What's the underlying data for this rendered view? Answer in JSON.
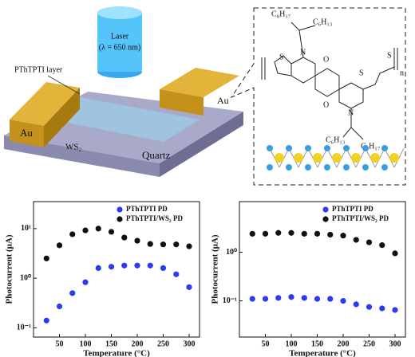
{
  "schematic": {
    "laser": "Laser",
    "wavelength": "(λ = 650 nm)",
    "layer": "PThTPTI layer",
    "electrodes": [
      "Au",
      "Au"
    ],
    "ws2": "WS₂",
    "substrate": "Quartz",
    "structure": {
      "side_chains": [
        "C₈H₁₇",
        "C₆H₁₃",
        "C₆H₁₃",
        "C₈H₁₇"
      ],
      "oxygens": [
        "O",
        "O"
      ],
      "nitrogens": [
        "N",
        "N"
      ],
      "sulfurs": [
        "S",
        "S",
        "S"
      ],
      "repeat": "n"
    }
  },
  "chart_data": [
    {
      "type": "scatter",
      "xlabel": "Temperature (°C)",
      "ylabel": "Photocurrent (μA)",
      "yscale": "log",
      "legend": "upper right",
      "x": [
        25,
        50,
        75,
        100,
        125,
        150,
        175,
        200,
        225,
        250,
        275,
        300
      ],
      "series": [
        {
          "name": "PThTPTI PD",
          "color": "#2a3cf0",
          "values": [
            0.14,
            0.27,
            0.5,
            0.83,
            1.6,
            1.7,
            1.8,
            1.8,
            1.8,
            1.6,
            1.2,
            0.66
          ]
        },
        {
          "name": "PThTPTI/WS₂ PD",
          "color": "#111111",
          "values": [
            2.5,
            4.6,
            7.7,
            9.2,
            10,
            8.6,
            6.6,
            5.7,
            4.9,
            4.8,
            4.8,
            4.4
          ]
        }
      ],
      "xlim": [
        0,
        320
      ],
      "xticks": [
        50,
        100,
        150,
        200,
        250,
        300
      ],
      "ylim": [
        0.065,
        35
      ],
      "yticks": [
        {
          "value": 0.1,
          "label": "10⁻¹"
        },
        {
          "value": 1,
          "label": "10⁰"
        },
        {
          "value": 10,
          "label": "10¹"
        }
      ]
    },
    {
      "type": "scatter",
      "xlabel": "Temperature (°C)",
      "ylabel": "Photocurrent (μA)",
      "yscale": "log",
      "legend": "upper right",
      "x": [
        25,
        50,
        75,
        100,
        125,
        150,
        175,
        200,
        225,
        250,
        275,
        300
      ],
      "series": [
        {
          "name": "PThTPTI PD",
          "color": "#2a3cf0",
          "values": [
            0.11,
            0.11,
            0.115,
            0.12,
            0.115,
            0.11,
            0.11,
            0.1,
            0.085,
            0.075,
            0.07,
            0.065
          ]
        },
        {
          "name": "PThTPTI/WS₂ PD",
          "color": "#111111",
          "values": [
            2.4,
            2.4,
            2.5,
            2.5,
            2.4,
            2.4,
            2.3,
            2.2,
            1.8,
            1.6,
            1.4,
            0.95
          ]
        }
      ],
      "xlim": [
        0,
        320
      ],
      "xticks": [
        50,
        100,
        150,
        200,
        250,
        300
      ],
      "ylim": [
        0.018,
        11
      ],
      "yticks": [
        {
          "value": 0.1,
          "label": "10⁻¹"
        },
        {
          "value": 1,
          "label": "10⁰"
        }
      ]
    }
  ]
}
